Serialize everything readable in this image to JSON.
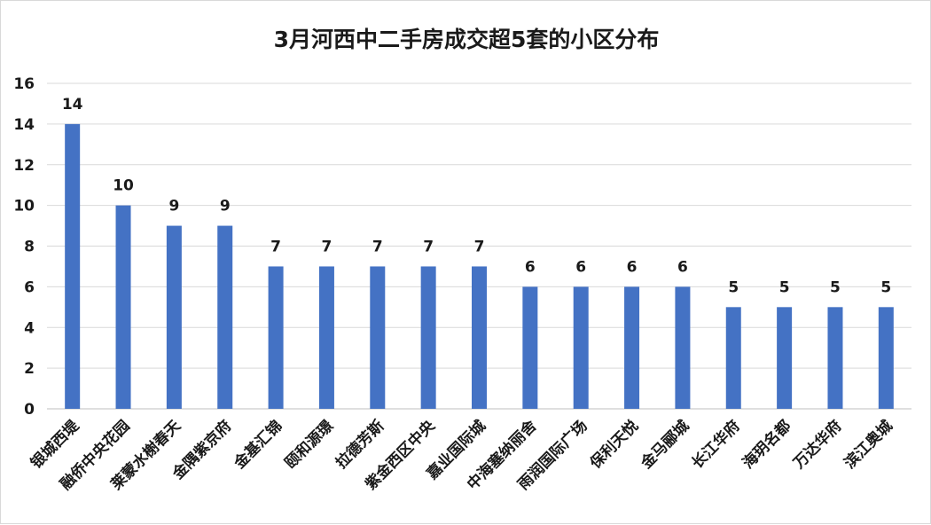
{
  "chart_data": {
    "type": "bar",
    "title": "3月河西中二手房成交超5套的小区分布",
    "xlabel": "",
    "ylabel": "",
    "ylim": [
      0,
      16
    ],
    "yticks": [
      0,
      2,
      4,
      6,
      8,
      10,
      12,
      14,
      16
    ],
    "grid": true,
    "legend": "none",
    "bar_color": "#4472C4",
    "categories": [
      "银城西堤",
      "融侨中央花园",
      "莱蒙水榭春天",
      "金隅紫京府",
      "金基汇锦",
      "颐和源璟",
      "拉德芳斯",
      "紫金西区中央",
      "嘉业国际城",
      "中海塞纳丽舍",
      "雨润国际广场",
      "保利天悦",
      "金马郦城",
      "长江华府",
      "海玥名都",
      "万达华府",
      "滨江奥城"
    ],
    "values": [
      14,
      10,
      9,
      9,
      7,
      7,
      7,
      7,
      7,
      6,
      6,
      6,
      6,
      5,
      5,
      5,
      5
    ],
    "data_labels": [
      "14",
      "10",
      "9",
      "9",
      "7",
      "7",
      "7",
      "7",
      "7",
      "6",
      "6",
      "6",
      "6",
      "5",
      "5",
      "5",
      "5"
    ]
  }
}
